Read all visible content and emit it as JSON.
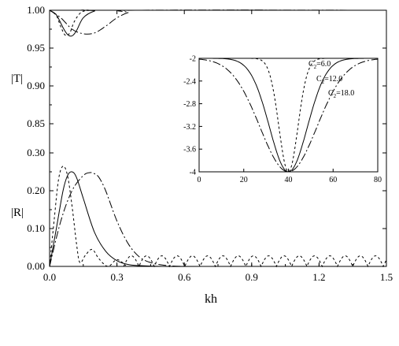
{
  "chart_data": [
    {
      "type": "line",
      "panel": "T",
      "ylabel": "|T|",
      "xlabel": "",
      "xlim": [
        0,
        1.5
      ],
      "ylim": [
        0.85,
        1.0
      ],
      "yticks": [
        "0.85",
        "0.90",
        "0.95",
        "1.00"
      ],
      "series": [
        {
          "style": "dash",
          "x": [
            0,
            0.03,
            0.05,
            0.07,
            0.09,
            0.11,
            0.14,
            0.18,
            0.25,
            1.5
          ],
          "y": [
            1.0,
            0.993,
            0.978,
            0.967,
            0.97,
            0.985,
            0.997,
            1.0,
            1.0,
            1.0
          ]
        },
        {
          "style": "solid",
          "x": [
            0,
            0.03,
            0.06,
            0.08,
            0.1,
            0.12,
            0.15,
            0.2,
            0.25,
            1.5
          ],
          "y": [
            1.0,
            0.994,
            0.977,
            0.968,
            0.966,
            0.973,
            0.99,
            0.999,
            1.0,
            1.0
          ]
        },
        {
          "style": "dashdot",
          "x": [
            0,
            0.05,
            0.1,
            0.15,
            0.2,
            0.25,
            0.3,
            0.35,
            0.4,
            1.5
          ],
          "y": [
            1.0,
            0.99,
            0.975,
            0.969,
            0.97,
            0.979,
            0.99,
            0.997,
            1.0,
            1.0
          ]
        }
      ]
    },
    {
      "type": "line",
      "panel": "R",
      "ylabel": "|R|",
      "xlabel": "kh",
      "xlim": [
        0,
        1.5
      ],
      "ylim": [
        0,
        0.3
      ],
      "xticks": [
        "0.0",
        "0.3",
        "0.6",
        "0.9",
        "1.2",
        "1.5"
      ],
      "yticks": [
        "0.00",
        "0.10",
        "0.20",
        "0.30"
      ],
      "series": [
        {
          "style": "dash",
          "x": [
            0,
            0.02,
            0.04,
            0.06,
            0.08,
            0.1,
            0.12,
            0.135,
            0.16,
            0.19,
            0.22,
            0.26,
            0.3,
            0.34
          ],
          "y": [
            0,
            0.12,
            0.23,
            0.265,
            0.24,
            0.16,
            0.06,
            0.01,
            0.03,
            0.045,
            0.02,
            0.0,
            0.018,
            0.002
          ]
        },
        {
          "style": "solid",
          "x": [
            0,
            0.03,
            0.06,
            0.08,
            0.1,
            0.12,
            0.15,
            0.2,
            0.25,
            0.3,
            0.35,
            0.4,
            0.5,
            0.7,
            1.5
          ],
          "y": [
            0,
            0.1,
            0.2,
            0.24,
            0.25,
            0.235,
            0.18,
            0.09,
            0.04,
            0.015,
            0.005,
            0.002,
            0.0,
            0.0,
            0.0
          ]
        },
        {
          "style": "dashdot",
          "x": [
            0,
            0.05,
            0.1,
            0.15,
            0.18,
            0.2,
            0.22,
            0.25,
            0.3,
            0.35,
            0.4,
            0.45,
            0.5,
            0.55,
            0.6
          ],
          "y": [
            0,
            0.12,
            0.2,
            0.24,
            0.248,
            0.245,
            0.235,
            0.2,
            0.12,
            0.06,
            0.025,
            0.01,
            0.004,
            0.001,
            0.0
          ]
        },
        {
          "style": "dotted-periodic",
          "x_start": 0.33,
          "x_end": 1.5,
          "period": 0.068,
          "peak": 0.028
        }
      ]
    },
    {
      "type": "line",
      "panel": "inset",
      "xlim": [
        0,
        80
      ],
      "ylim": [
        -4,
        -2
      ],
      "xticks": [
        "0",
        "20",
        "40",
        "60",
        "80"
      ],
      "yticks": [
        "-2",
        "-2.4",
        "-2.8",
        "-3.2",
        "-3.6",
        "-4"
      ],
      "annotations": [
        {
          "label": "C",
          "sub": "2",
          "value": "=6.0"
        },
        {
          "label": "C",
          "sub": "2",
          "value": "=12.0"
        },
        {
          "label": "C",
          "sub": "2",
          "value": "=18.0"
        }
      ],
      "series": [
        {
          "style": "dash",
          "name": "C2=6.0",
          "center": 40,
          "width": 6.0
        },
        {
          "style": "solid",
          "name": "C2=12.0",
          "center": 40,
          "width": 12.0
        },
        {
          "style": "dashdot",
          "name": "C2=18.0",
          "center": 40,
          "width": 18.0
        }
      ]
    }
  ]
}
